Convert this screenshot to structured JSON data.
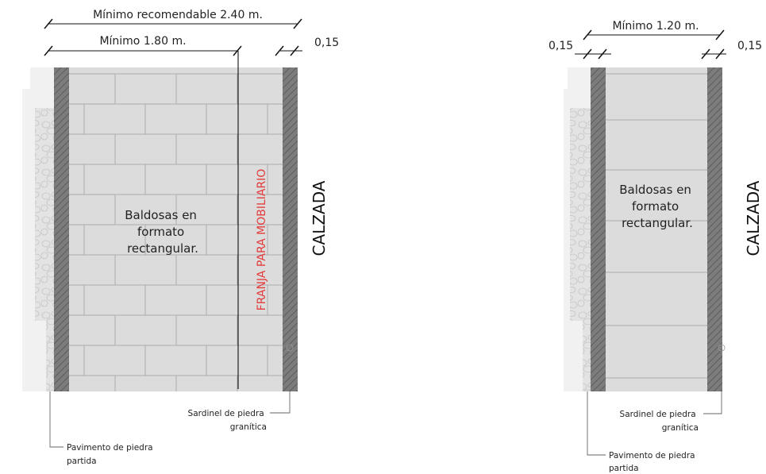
{
  "colors": {
    "pavement_light": "#f1f1f1",
    "stone": "#e3e3e3",
    "curb": "#7c7c7c",
    "tile": "#dcdcdc",
    "mobiliario_red": "#e33b3b"
  },
  "left": {
    "dim_recommended": "Mínimo recomendable 2.40 m.",
    "dim_min": "Mínimo 1.80 m.",
    "dim_curb": "0,15",
    "tiles_lines": [
      "Baldosas en",
      "formato",
      "rectangular."
    ],
    "mobiliario": "FRANJA PARA MOBILIARIO",
    "road": "CALZADA",
    "curb_label": [
      "Sardinel de piedra",
      "granítica"
    ],
    "paving_label": [
      "Pavimento de piedra",
      "partida"
    ]
  },
  "right": {
    "dim_min": "Mínimo 1.20 m.",
    "dim_curb_left": "0,15",
    "dim_curb_right": "0,15",
    "tiles_lines": [
      "Baldosas en",
      "formato",
      "rectangular."
    ],
    "road": "CALZADA",
    "curb_label": [
      "Sardinel de piedra",
      "granítica"
    ],
    "paving_label": [
      "Pavimento de piedra",
      "partida"
    ]
  }
}
